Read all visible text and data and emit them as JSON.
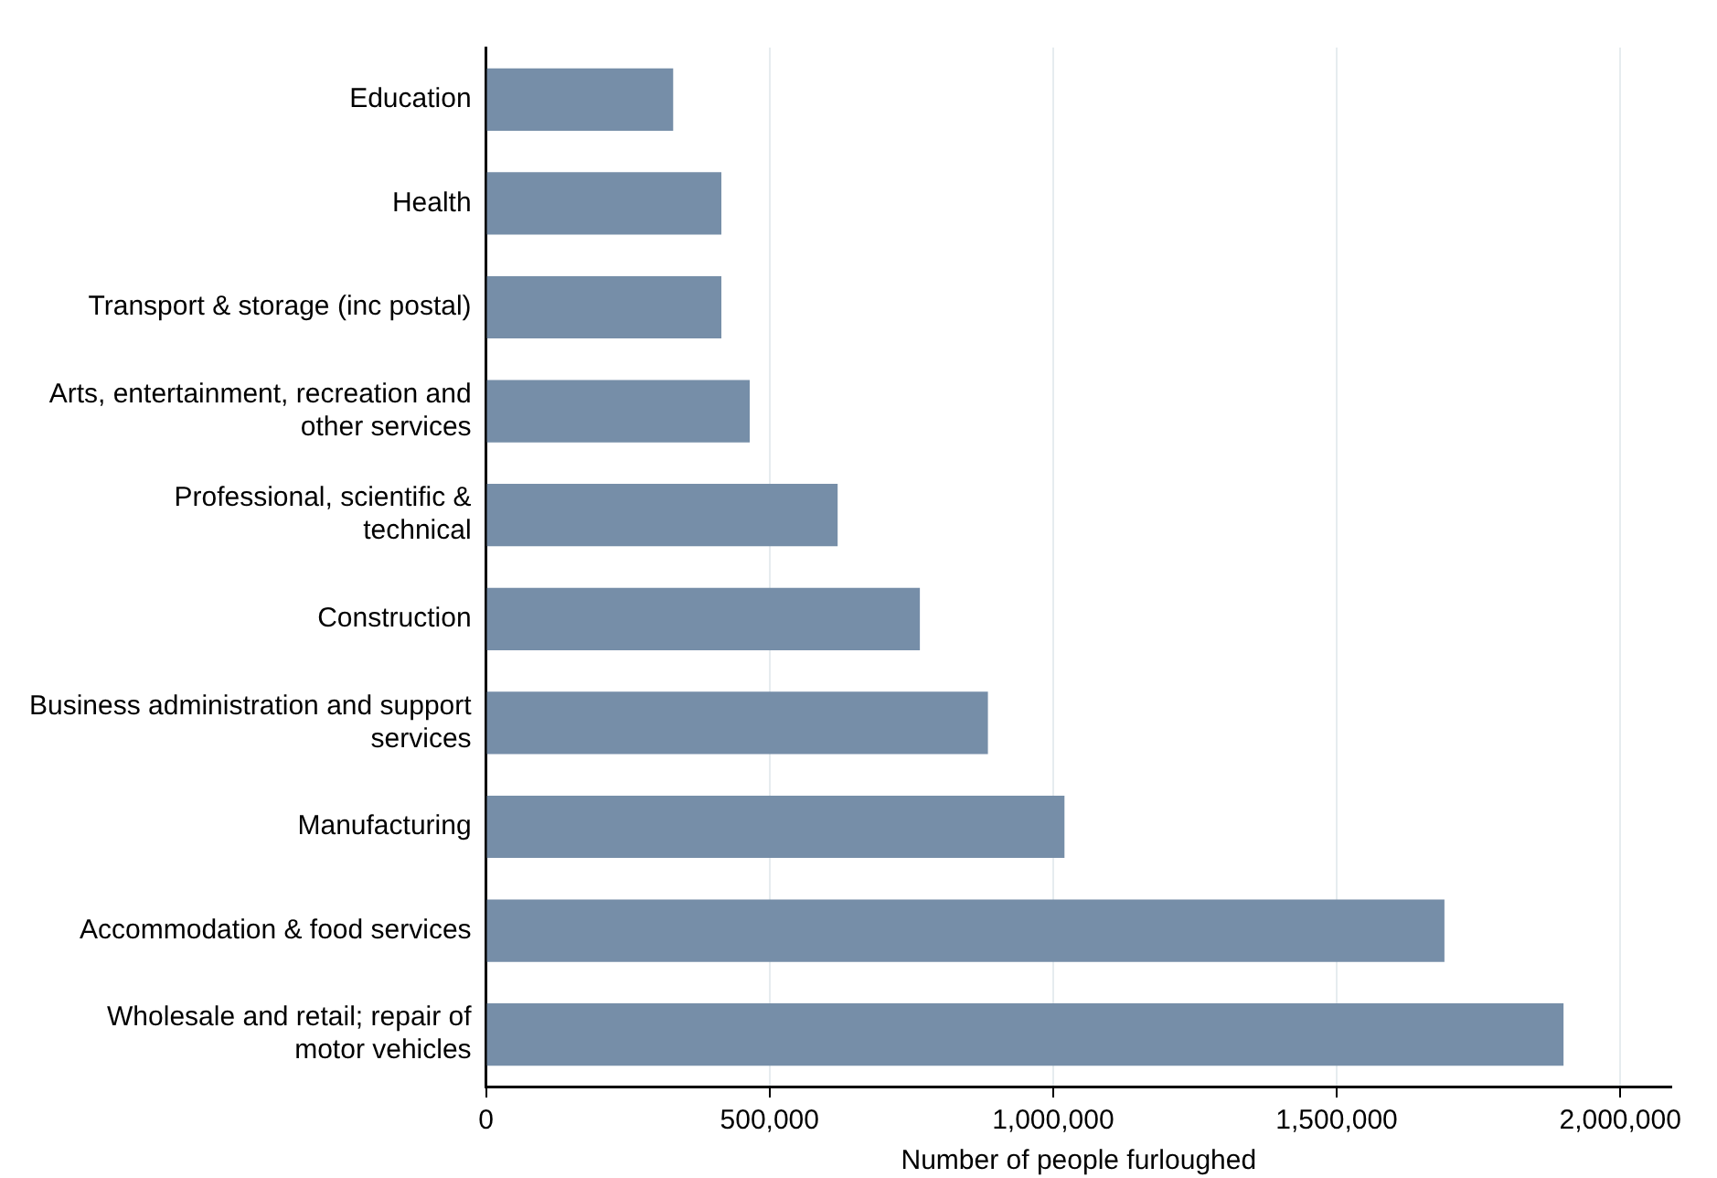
{
  "chart_data": {
    "type": "bar",
    "orientation": "horizontal",
    "xlabel": "Number of people furloughed",
    "categories": [
      "Education",
      "Health",
      "Transport & storage (inc postal)",
      "Arts, entertainment, recreation and other services",
      "Professional, scientific & technical",
      "Construction",
      "Business administration and support services",
      "Manufacturing",
      "Accommodation & food services",
      "Wholesale and retail; repair of motor vehicles"
    ],
    "values": [
      330000,
      415000,
      415000,
      465000,
      620000,
      765000,
      885000,
      1020000,
      1690000,
      1900000
    ],
    "color": "#768ea8",
    "xlim": [
      0,
      2090000
    ],
    "xticks": [
      {
        "value": 0,
        "label": "0"
      },
      {
        "value": 500000,
        "label": "500,000"
      },
      {
        "value": 1000000,
        "label": "1,000,000"
      },
      {
        "value": 1500000,
        "label": "1,500,000"
      },
      {
        "value": 2000000,
        "label": "2,000,000"
      }
    ],
    "grid": "x",
    "legend": false
  }
}
